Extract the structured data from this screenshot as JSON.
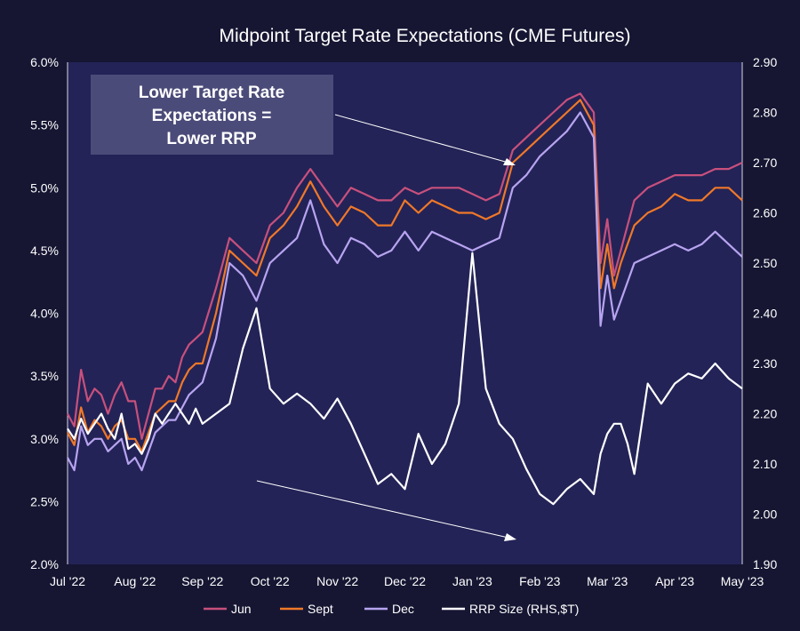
{
  "chart_data": {
    "type": "line",
    "title": "Midpoint Target Rate Expectations (CME Futures)",
    "x_tick_labels": [
      "Jul '22",
      "Aug '22",
      "Sep '22",
      "Oct '22",
      "Nov '22",
      "Dec '22",
      "Jan '23",
      "Feb '23",
      "Mar '23",
      "Apr '23",
      "May '23"
    ],
    "y_left": {
      "range": [
        2.0,
        6.0
      ],
      "ticks": [
        2.0,
        2.5,
        3.0,
        3.5,
        4.0,
        4.5,
        5.0,
        5.5,
        6.0
      ],
      "tick_labels": [
        "2.0%",
        "2.5%",
        "3.0%",
        "3.5%",
        "4.0%",
        "4.5%",
        "5.0%",
        "5.5%",
        "6.0%"
      ]
    },
    "y_right": {
      "range": [
        1.9,
        2.9
      ],
      "ticks": [
        1.9,
        2.0,
        2.1,
        2.2,
        2.3,
        2.4,
        2.5,
        2.6,
        2.7,
        2.8,
        2.9
      ],
      "tick_labels": [
        "1.90",
        "2.00",
        "2.10",
        "2.20",
        "2.30",
        "2.40",
        "2.50",
        "2.60",
        "2.70",
        "2.80",
        "2.90"
      ]
    },
    "grid": false,
    "legend_position": "bottom",
    "annotation": {
      "lines": [
        "Lower Target Rate",
        "Expectations =",
        "Lower RRP"
      ]
    },
    "colors": {
      "Jun": "#c8507c",
      "Sept": "#f07828",
      "Dec": "#b8a4f0",
      "RRP Size (RHS,$T)": "#ffffff"
    },
    "series": [
      {
        "name": "Jun",
        "axis": "left",
        "x": [
          0,
          0.1,
          0.2,
          0.3,
          0.4,
          0.5,
          0.6,
          0.7,
          0.8,
          0.9,
          1.0,
          1.1,
          1.2,
          1.3,
          1.4,
          1.5,
          1.6,
          1.7,
          1.8,
          1.9,
          2.0,
          2.2,
          2.4,
          2.6,
          2.8,
          3.0,
          3.2,
          3.4,
          3.6,
          3.8,
          4.0,
          4.2,
          4.4,
          4.6,
          4.8,
          5.0,
          5.2,
          5.4,
          5.6,
          5.8,
          6.0,
          6.2,
          6.4,
          6.6,
          6.8,
          7.0,
          7.2,
          7.4,
          7.6,
          7.8,
          7.9,
          8.0,
          8.1,
          8.2,
          8.3,
          8.4,
          8.6,
          8.8,
          9.0,
          9.2,
          9.4,
          9.6,
          9.8,
          10.0
        ],
        "y": [
          3.2,
          3.1,
          3.55,
          3.3,
          3.4,
          3.35,
          3.2,
          3.35,
          3.45,
          3.3,
          3.3,
          3.0,
          3.2,
          3.4,
          3.4,
          3.5,
          3.45,
          3.65,
          3.75,
          3.8,
          3.85,
          4.2,
          4.6,
          4.5,
          4.4,
          4.7,
          4.8,
          5.0,
          5.15,
          5.0,
          4.85,
          5.0,
          4.95,
          4.9,
          4.9,
          5.0,
          4.95,
          5.0,
          5.0,
          5.0,
          4.95,
          4.9,
          4.95,
          5.3,
          5.4,
          5.5,
          5.6,
          5.7,
          5.75,
          5.6,
          4.4,
          4.75,
          4.3,
          4.5,
          4.7,
          4.9,
          5.0,
          5.05,
          5.1,
          5.1,
          5.1,
          5.15,
          5.15,
          5.2
        ]
      },
      {
        "name": "Sept",
        "axis": "left",
        "x": [
          0,
          0.1,
          0.2,
          0.3,
          0.4,
          0.5,
          0.6,
          0.7,
          0.8,
          0.9,
          1.0,
          1.1,
          1.2,
          1.3,
          1.4,
          1.5,
          1.6,
          1.7,
          1.8,
          1.9,
          2.0,
          2.2,
          2.4,
          2.6,
          2.8,
          3.0,
          3.2,
          3.4,
          3.6,
          3.8,
          4.0,
          4.2,
          4.4,
          4.6,
          4.8,
          5.0,
          5.2,
          5.4,
          5.6,
          5.8,
          6.0,
          6.2,
          6.4,
          6.6,
          6.8,
          7.0,
          7.2,
          7.4,
          7.6,
          7.8,
          7.9,
          8.0,
          8.1,
          8.2,
          8.3,
          8.4,
          8.6,
          8.8,
          9.0,
          9.2,
          9.4,
          9.6,
          9.8,
          10.0
        ],
        "y": [
          3.05,
          2.95,
          3.25,
          3.05,
          3.15,
          3.1,
          3.0,
          3.1,
          3.15,
          3.0,
          3.0,
          2.9,
          3.05,
          3.2,
          3.25,
          3.3,
          3.3,
          3.45,
          3.55,
          3.6,
          3.6,
          4.0,
          4.5,
          4.4,
          4.3,
          4.6,
          4.7,
          4.85,
          5.05,
          4.85,
          4.7,
          4.85,
          4.8,
          4.7,
          4.7,
          4.9,
          4.8,
          4.9,
          4.85,
          4.8,
          4.8,
          4.75,
          4.8,
          5.2,
          5.3,
          5.4,
          5.5,
          5.6,
          5.7,
          5.5,
          4.2,
          4.55,
          4.2,
          4.4,
          4.55,
          4.7,
          4.8,
          4.85,
          4.95,
          4.9,
          4.9,
          5.0,
          5.0,
          4.9
        ]
      },
      {
        "name": "Dec",
        "axis": "left",
        "x": [
          0,
          0.1,
          0.2,
          0.3,
          0.4,
          0.5,
          0.6,
          0.7,
          0.8,
          0.9,
          1.0,
          1.1,
          1.2,
          1.3,
          1.4,
          1.5,
          1.6,
          1.7,
          1.8,
          1.9,
          2.0,
          2.2,
          2.4,
          2.6,
          2.8,
          3.0,
          3.2,
          3.4,
          3.6,
          3.8,
          4.0,
          4.2,
          4.4,
          4.6,
          4.8,
          5.0,
          5.2,
          5.4,
          5.6,
          5.8,
          6.0,
          6.2,
          6.4,
          6.6,
          6.8,
          7.0,
          7.2,
          7.4,
          7.6,
          7.8,
          7.9,
          8.0,
          8.1,
          8.2,
          8.3,
          8.4,
          8.6,
          8.8,
          9.0,
          9.2,
          9.4,
          9.6,
          9.8,
          10.0
        ],
        "y": [
          2.85,
          2.75,
          3.1,
          2.95,
          3.0,
          3.0,
          2.9,
          2.95,
          3.0,
          2.8,
          2.85,
          2.75,
          2.9,
          3.05,
          3.1,
          3.15,
          3.15,
          3.25,
          3.35,
          3.4,
          3.45,
          3.8,
          4.4,
          4.3,
          4.1,
          4.4,
          4.5,
          4.6,
          4.9,
          4.55,
          4.4,
          4.6,
          4.55,
          4.45,
          4.5,
          4.65,
          4.5,
          4.65,
          4.6,
          4.55,
          4.5,
          4.55,
          4.6,
          5.0,
          5.1,
          5.25,
          5.35,
          5.45,
          5.6,
          5.4,
          3.9,
          4.3,
          3.95,
          4.1,
          4.25,
          4.4,
          4.45,
          4.5,
          4.55,
          4.5,
          4.55,
          4.65,
          4.55,
          4.45
        ]
      },
      {
        "name": "RRP Size (RHS,$T)",
        "axis": "right",
        "x": [
          0,
          0.1,
          0.2,
          0.3,
          0.4,
          0.5,
          0.6,
          0.7,
          0.8,
          0.9,
          1.0,
          1.1,
          1.2,
          1.3,
          1.4,
          1.5,
          1.6,
          1.7,
          1.8,
          1.9,
          2.0,
          2.2,
          2.4,
          2.6,
          2.8,
          3.0,
          3.2,
          3.4,
          3.6,
          3.8,
          4.0,
          4.2,
          4.4,
          4.6,
          4.8,
          5.0,
          5.2,
          5.4,
          5.6,
          5.8,
          6.0,
          6.2,
          6.4,
          6.6,
          6.8,
          7.0,
          7.2,
          7.4,
          7.6,
          7.8,
          7.9,
          8.0,
          8.1,
          8.2,
          8.3,
          8.4,
          8.6,
          8.8,
          9.0,
          9.2,
          9.4,
          9.6,
          9.8,
          10.0
        ],
        "y": [
          2.17,
          2.15,
          2.19,
          2.16,
          2.18,
          2.2,
          2.17,
          2.15,
          2.2,
          2.13,
          2.14,
          2.12,
          2.15,
          2.2,
          2.18,
          2.2,
          2.22,
          2.2,
          2.18,
          2.21,
          2.18,
          2.2,
          2.22,
          2.33,
          2.41,
          2.25,
          2.22,
          2.24,
          2.22,
          2.19,
          2.23,
          2.18,
          2.12,
          2.06,
          2.08,
          2.05,
          2.16,
          2.1,
          2.14,
          2.22,
          2.52,
          2.25,
          2.18,
          2.15,
          2.09,
          2.04,
          2.02,
          2.05,
          2.07,
          2.04,
          2.12,
          2.16,
          2.18,
          2.18,
          2.14,
          2.08,
          2.26,
          2.22,
          2.26,
          2.28,
          2.27,
          2.3,
          2.27,
          2.25
        ]
      }
    ]
  }
}
